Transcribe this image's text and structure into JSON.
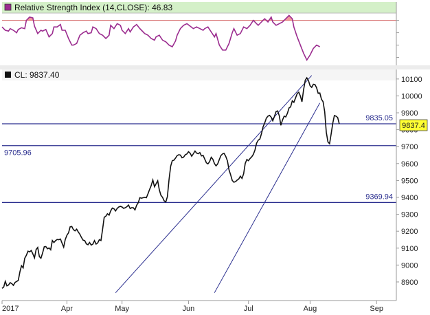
{
  "colors": {
    "rsi_header_bg": "#d4f0c8",
    "rsi_line": "#9b2c8f",
    "rsi_fill": "#f08a8a",
    "rsi_level_line": "#d66a6a",
    "price_line": "#111111",
    "channel_line": "#2b2f8f",
    "hline": "#2b2f8f",
    "last_price_bg": "#ffff33",
    "axis_line": "#999999"
  },
  "icons": {
    "rsi_marker": "purple-square-icon",
    "price_marker": "black-square-icon"
  },
  "rsi_panel": {
    "title": "Relative Strength Index (14,CLOSE): 46.83",
    "overbought_level": 70,
    "series": [
      [
        0,
        62
      ],
      [
        2,
        58
      ],
      [
        4,
        57
      ],
      [
        5,
        60
      ],
      [
        7,
        58
      ],
      [
        9,
        55
      ],
      [
        10,
        59
      ],
      [
        12,
        61
      ],
      [
        14,
        60
      ],
      [
        15,
        70
      ],
      [
        17,
        74
      ],
      [
        19,
        73
      ],
      [
        20,
        63
      ],
      [
        22,
        54
      ],
      [
        24,
        58
      ],
      [
        25,
        57
      ],
      [
        27,
        59
      ],
      [
        29,
        50
      ],
      [
        31,
        54
      ],
      [
        32,
        62
      ],
      [
        34,
        62
      ],
      [
        36,
        65
      ],
      [
        37,
        58
      ],
      [
        39,
        58
      ],
      [
        41,
        48
      ],
      [
        43,
        40
      ],
      [
        44,
        40
      ],
      [
        46,
        42
      ],
      [
        48,
        52
      ],
      [
        50,
        55
      ],
      [
        52,
        57
      ],
      [
        53,
        54
      ],
      [
        55,
        55
      ],
      [
        56,
        62
      ],
      [
        58,
        60
      ],
      [
        60,
        54
      ],
      [
        62,
        52
      ],
      [
        64,
        48
      ],
      [
        66,
        52
      ],
      [
        67,
        64
      ],
      [
        69,
        60
      ],
      [
        71,
        66
      ],
      [
        73,
        64
      ],
      [
        74,
        58
      ],
      [
        76,
        54
      ],
      [
        78,
        60
      ],
      [
        79,
        56
      ],
      [
        81,
        62
      ],
      [
        83,
        65
      ],
      [
        85,
        60
      ],
      [
        86,
        58
      ],
      [
        88,
        54
      ],
      [
        90,
        52
      ],
      [
        92,
        48
      ],
      [
        94,
        46
      ],
      [
        95,
        50
      ],
      [
        97,
        52
      ],
      [
        99,
        46
      ],
      [
        101,
        44
      ],
      [
        103,
        40
      ],
      [
        105,
        38
      ],
      [
        107,
        45
      ],
      [
        108,
        52
      ],
      [
        110,
        60
      ],
      [
        112,
        64
      ],
      [
        114,
        66
      ],
      [
        116,
        63
      ],
      [
        118,
        60
      ],
      [
        120,
        62
      ],
      [
        122,
        60
      ],
      [
        124,
        58
      ],
      [
        125,
        60
      ],
      [
        127,
        62
      ],
      [
        129,
        56
      ],
      [
        131,
        50
      ],
      [
        132,
        54
      ],
      [
        134,
        40
      ],
      [
        136,
        34
      ],
      [
        138,
        34
      ],
      [
        140,
        42
      ],
      [
        142,
        55
      ],
      [
        143,
        60
      ],
      [
        145,
        52
      ],
      [
        147,
        54
      ],
      [
        149,
        62
      ],
      [
        151,
        60
      ],
      [
        153,
        64
      ],
      [
        155,
        70
      ],
      [
        157,
        66
      ],
      [
        158,
        64
      ],
      [
        160,
        68
      ],
      [
        162,
        72
      ],
      [
        164,
        68
      ],
      [
        166,
        74
      ],
      [
        167,
        68
      ],
      [
        169,
        64
      ],
      [
        171,
        66
      ],
      [
        173,
        68
      ],
      [
        175,
        72
      ],
      [
        177,
        76
      ],
      [
        179,
        72
      ],
      [
        180,
        62
      ],
      [
        182,
        50
      ],
      [
        184,
        40
      ],
      [
        186,
        30
      ],
      [
        188,
        22
      ],
      [
        190,
        28
      ],
      [
        192,
        36
      ],
      [
        194,
        40
      ],
      [
        196,
        38
      ]
    ]
  },
  "price_panel": {
    "title": "CL: 9837.40",
    "last_price_label": "9837.4",
    "hlines": [
      {
        "value": 9835.05,
        "label": "9835.05",
        "label_side": "right"
      },
      {
        "value": 9705.96,
        "label": "9705.96",
        "label_side": "left"
      },
      {
        "value": 9369.94,
        "label": "9369.94",
        "label_side": "right"
      }
    ],
    "channel_lines": [
      {
        "x1": 70,
        "y1": 8836,
        "x2": 191,
        "y2": 10121
      },
      {
        "x1": 131,
        "y1": 8836,
        "x2": 196,
        "y2": 9958
      }
    ]
  },
  "chart_data": {
    "type": "line",
    "title": "",
    "xlabel": "",
    "ylabel": "",
    "x_unit": "trading day index (2017)",
    "ylim": [
      8790,
      10140
    ],
    "y_ticks": [
      8900,
      9000,
      9100,
      9200,
      9300,
      9400,
      9500,
      9600,
      9700,
      9800,
      9900,
      10000,
      10100
    ],
    "x_ticks": [
      {
        "x": 0,
        "label": "2017"
      },
      {
        "x": 40,
        "label": "Apr"
      },
      {
        "x": 74,
        "label": "May"
      },
      {
        "x": 115,
        "label": "Jun"
      },
      {
        "x": 152,
        "label": "Jul"
      },
      {
        "x": 190,
        "label": "Aug"
      },
      {
        "x": 231,
        "label": "Sep"
      }
    ],
    "xlim": [
      0,
      236
    ],
    "grid": false,
    "series": [
      {
        "values": [
          [
            0,
            8862
          ],
          [
            1,
            8870
          ],
          [
            2,
            8904
          ],
          [
            3,
            8877
          ],
          [
            4,
            8882
          ],
          [
            5,
            8896
          ],
          [
            6,
            8890
          ],
          [
            7,
            8880
          ],
          [
            8,
            8897
          ],
          [
            10,
            8909
          ],
          [
            11,
            8960
          ],
          [
            12,
            8996
          ],
          [
            13,
            8983
          ],
          [
            14,
            9040
          ],
          [
            15,
            9058
          ],
          [
            16,
            9082
          ],
          [
            17,
            9078
          ],
          [
            18,
            9086
          ],
          [
            19,
            9066
          ],
          [
            20,
            9042
          ],
          [
            21,
            9092
          ],
          [
            22,
            9104
          ],
          [
            23,
            9050
          ],
          [
            24,
            9040
          ],
          [
            25,
            9071
          ],
          [
            26,
            9108
          ],
          [
            27,
            9109
          ],
          [
            28,
            9096
          ],
          [
            29,
            9101
          ],
          [
            30,
            9090
          ],
          [
            31,
            9145
          ],
          [
            32,
            9133
          ],
          [
            33,
            9144
          ],
          [
            34,
            9151
          ],
          [
            35,
            9150
          ],
          [
            36,
            9154
          ],
          [
            37,
            9130
          ],
          [
            38,
            9106
          ],
          [
            39,
            9151
          ],
          [
            40,
            9176
          ],
          [
            41,
            9191
          ],
          [
            42,
            9226
          ],
          [
            43,
            9228
          ],
          [
            44,
            9210
          ],
          [
            45,
            9202
          ],
          [
            46,
            9212
          ],
          [
            47,
            9196
          ],
          [
            48,
            9182
          ],
          [
            49,
            9163
          ],
          [
            50,
            9147
          ],
          [
            51,
            9144
          ],
          [
            52,
            9125
          ],
          [
            53,
            9120
          ],
          [
            54,
            9133
          ],
          [
            55,
            9118
          ],
          [
            56,
            9124
          ],
          [
            57,
            9144
          ],
          [
            58,
            9124
          ],
          [
            59,
            9131
          ],
          [
            60,
            9150
          ],
          [
            61,
            9145
          ],
          [
            62,
            9210
          ],
          [
            63,
            9282
          ],
          [
            64,
            9289
          ],
          [
            65,
            9303
          ],
          [
            66,
            9295
          ],
          [
            67,
            9320
          ],
          [
            68,
            9337
          ],
          [
            69,
            9333
          ],
          [
            70,
            9320
          ],
          [
            71,
            9335
          ],
          [
            72,
            9343
          ],
          [
            73,
            9347
          ],
          [
            74,
            9343
          ],
          [
            75,
            9335
          ],
          [
            76,
            9339
          ],
          [
            77,
            9345
          ],
          [
            78,
            9355
          ],
          [
            79,
            9334
          ],
          [
            80,
            9339
          ],
          [
            81,
            9338
          ],
          [
            82,
            9326
          ],
          [
            83,
            9353
          ],
          [
            84,
            9369
          ],
          [
            85,
            9398
          ],
          [
            86,
            9395
          ],
          [
            87,
            9398
          ],
          [
            88,
            9400
          ],
          [
            89,
            9398
          ],
          [
            90,
            9421
          ],
          [
            91,
            9447
          ],
          [
            92,
            9470
          ],
          [
            93,
            9503
          ],
          [
            94,
            9463
          ],
          [
            95,
            9480
          ],
          [
            96,
            9498
          ],
          [
            97,
            9445
          ],
          [
            98,
            9412
          ],
          [
            99,
            9400
          ],
          [
            100,
            9379
          ],
          [
            101,
            9373
          ],
          [
            102,
            9405
          ],
          [
            103,
            9506
          ],
          [
            104,
            9585
          ],
          [
            105,
            9617
          ],
          [
            106,
            9620
          ],
          [
            107,
            9632
          ],
          [
            108,
            9647
          ],
          [
            109,
            9652
          ],
          [
            110,
            9650
          ],
          [
            111,
            9634
          ],
          [
            112,
            9638
          ],
          [
            113,
            9652
          ],
          [
            114,
            9657
          ],
          [
            115,
            9670
          ],
          [
            116,
            9661
          ],
          [
            117,
            9643
          ],
          [
            118,
            9658
          ],
          [
            119,
            9674
          ],
          [
            120,
            9662
          ],
          [
            121,
            9658
          ],
          [
            122,
            9665
          ],
          [
            123,
            9645
          ],
          [
            124,
            9648
          ],
          [
            125,
            9627
          ],
          [
            126,
            9605
          ],
          [
            127,
            9598
          ],
          [
            128,
            9611
          ],
          [
            129,
            9637
          ],
          [
            130,
            9626
          ],
          [
            131,
            9600
          ],
          [
            132,
            9586
          ],
          [
            133,
            9598
          ],
          [
            134,
            9624
          ],
          [
            135,
            9647
          ],
          [
            136,
            9657
          ],
          [
            137,
            9660
          ],
          [
            138,
            9642
          ],
          [
            139,
            9616
          ],
          [
            140,
            9563
          ],
          [
            141,
            9533
          ],
          [
            142,
            9500
          ],
          [
            143,
            9490
          ],
          [
            144,
            9493
          ],
          [
            145,
            9502
          ],
          [
            146,
            9509
          ],
          [
            147,
            9525
          ],
          [
            148,
            9512
          ],
          [
            149,
            9540
          ],
          [
            150,
            9601
          ],
          [
            151,
            9624
          ],
          [
            152,
            9617
          ],
          [
            153,
            9630
          ],
          [
            154,
            9640
          ],
          [
            155,
            9654
          ],
          [
            156,
            9680
          ],
          [
            157,
            9720
          ],
          [
            158,
            9738
          ],
          [
            159,
            9745
          ],
          [
            160,
            9776
          ],
          [
            161,
            9817
          ],
          [
            162,
            9839
          ],
          [
            163,
            9868
          ],
          [
            164,
            9880
          ],
          [
            165,
            9885
          ],
          [
            166,
            9874
          ],
          [
            167,
            9853
          ],
          [
            168,
            9878
          ],
          [
            169,
            9908
          ],
          [
            170,
            9911
          ],
          [
            171,
            9882
          ],
          [
            172,
            9826
          ],
          [
            173,
            9858
          ],
          [
            174,
            9880
          ],
          [
            175,
            9876
          ],
          [
            176,
            9897
          ],
          [
            177,
            9929
          ],
          [
            178,
            9935
          ],
          [
            179,
            9971
          ],
          [
            180,
            9962
          ],
          [
            181,
            9987
          ],
          [
            182,
            10013
          ],
          [
            183,
            10022
          ],
          [
            184,
            9999
          ],
          [
            185,
            9965
          ],
          [
            186,
            10037
          ],
          [
            187,
            10093
          ],
          [
            188,
            10107
          ],
          [
            189,
            10090
          ],
          [
            190,
            10060
          ],
          [
            191,
            10050
          ],
          [
            192,
            10069
          ],
          [
            193,
            10067
          ],
          [
            194,
            10048
          ],
          [
            195,
            10015
          ],
          [
            196,
            10017
          ],
          [
            197,
            9980
          ],
          [
            198,
            9966
          ],
          [
            199,
            9906
          ],
          [
            200,
            9786
          ],
          [
            201,
            9728
          ],
          [
            202,
            9717
          ],
          [
            203,
            9775
          ],
          [
            204,
            9839
          ],
          [
            205,
            9884
          ],
          [
            206,
            9880
          ],
          [
            207,
            9872
          ],
          [
            208,
            9835
          ]
        ]
      }
    ]
  }
}
